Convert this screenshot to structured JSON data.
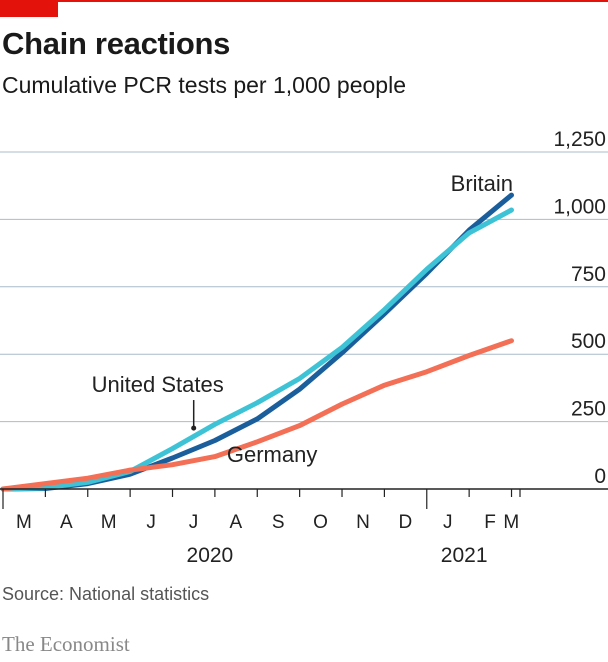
{
  "header": {
    "title": "Chain reactions",
    "subtitle": "Cumulative PCR tests per 1,000 people"
  },
  "footer": {
    "source": "Source: National statistics",
    "brand": "The Economist"
  },
  "colors": {
    "accent": "#e3120b",
    "britain": "#1a5e9c",
    "united_states": "#3ec3d6",
    "germany": "#f36f55",
    "gridline": "#a8bccb"
  },
  "chart_data": {
    "type": "line",
    "title": "Chain reactions",
    "subtitle": "Cumulative PCR tests per 1,000 people",
    "xlabel": "",
    "ylabel": "",
    "ylim": [
      0,
      1250
    ],
    "yticks": [
      {
        "value": 0,
        "label": "0"
      },
      {
        "value": 250,
        "label": "250"
      },
      {
        "value": 500,
        "label": "500"
      },
      {
        "value": 750,
        "label": "750"
      },
      {
        "value": 1000,
        "label": "1,000"
      },
      {
        "value": 1250,
        "label": "1,250"
      }
    ],
    "xlim": [
      0,
      12.2
    ],
    "xticks": [
      {
        "value": 0.5,
        "label": "M"
      },
      {
        "value": 1.5,
        "label": "A"
      },
      {
        "value": 2.5,
        "label": "M"
      },
      {
        "value": 3.5,
        "label": "J"
      },
      {
        "value": 4.5,
        "label": "J"
      },
      {
        "value": 5.5,
        "label": "A"
      },
      {
        "value": 6.5,
        "label": "S"
      },
      {
        "value": 7.5,
        "label": "O"
      },
      {
        "value": 8.5,
        "label": "N"
      },
      {
        "value": 9.5,
        "label": "D"
      },
      {
        "value": 10.5,
        "label": "J"
      },
      {
        "value": 11.5,
        "label": "F"
      },
      {
        "value": 12.0,
        "label": "M"
      }
    ],
    "year_labels": [
      {
        "value": 5.0,
        "label": "2020"
      },
      {
        "value": 11.0,
        "label": "2021"
      }
    ],
    "grid": true,
    "series": [
      {
        "name": "Britain",
        "color": "#1a5e9c",
        "points": [
          [
            0,
            0
          ],
          [
            1,
            2
          ],
          [
            2,
            20
          ],
          [
            3,
            55
          ],
          [
            4,
            115
          ],
          [
            5,
            180
          ],
          [
            6,
            260
          ],
          [
            7,
            370
          ],
          [
            8,
            505
          ],
          [
            9,
            650
          ],
          [
            10,
            800
          ],
          [
            11,
            960
          ],
          [
            12,
            1090
          ]
        ]
      },
      {
        "name": "United States",
        "color": "#3ec3d6",
        "points": [
          [
            0,
            0
          ],
          [
            1,
            5
          ],
          [
            2,
            25
          ],
          [
            3,
            65
          ],
          [
            4,
            150
          ],
          [
            5,
            240
          ],
          [
            6,
            320
          ],
          [
            7,
            410
          ],
          [
            8,
            525
          ],
          [
            9,
            665
          ],
          [
            10,
            815
          ],
          [
            11,
            950
          ],
          [
            12,
            1035
          ]
        ]
      },
      {
        "name": "Germany",
        "color": "#f36f55",
        "points": [
          [
            0,
            0
          ],
          [
            1,
            20
          ],
          [
            2,
            40
          ],
          [
            3,
            70
          ],
          [
            4,
            90
          ],
          [
            5,
            120
          ],
          [
            6,
            175
          ],
          [
            7,
            235
          ],
          [
            8,
            315
          ],
          [
            9,
            385
          ],
          [
            10,
            435
          ],
          [
            11,
            495
          ],
          [
            12,
            550
          ]
        ]
      }
    ],
    "labels": [
      {
        "series": "Britain",
        "text": "Britain"
      },
      {
        "series": "United States",
        "text": "United States"
      },
      {
        "series": "Germany",
        "text": "Germany"
      }
    ]
  }
}
